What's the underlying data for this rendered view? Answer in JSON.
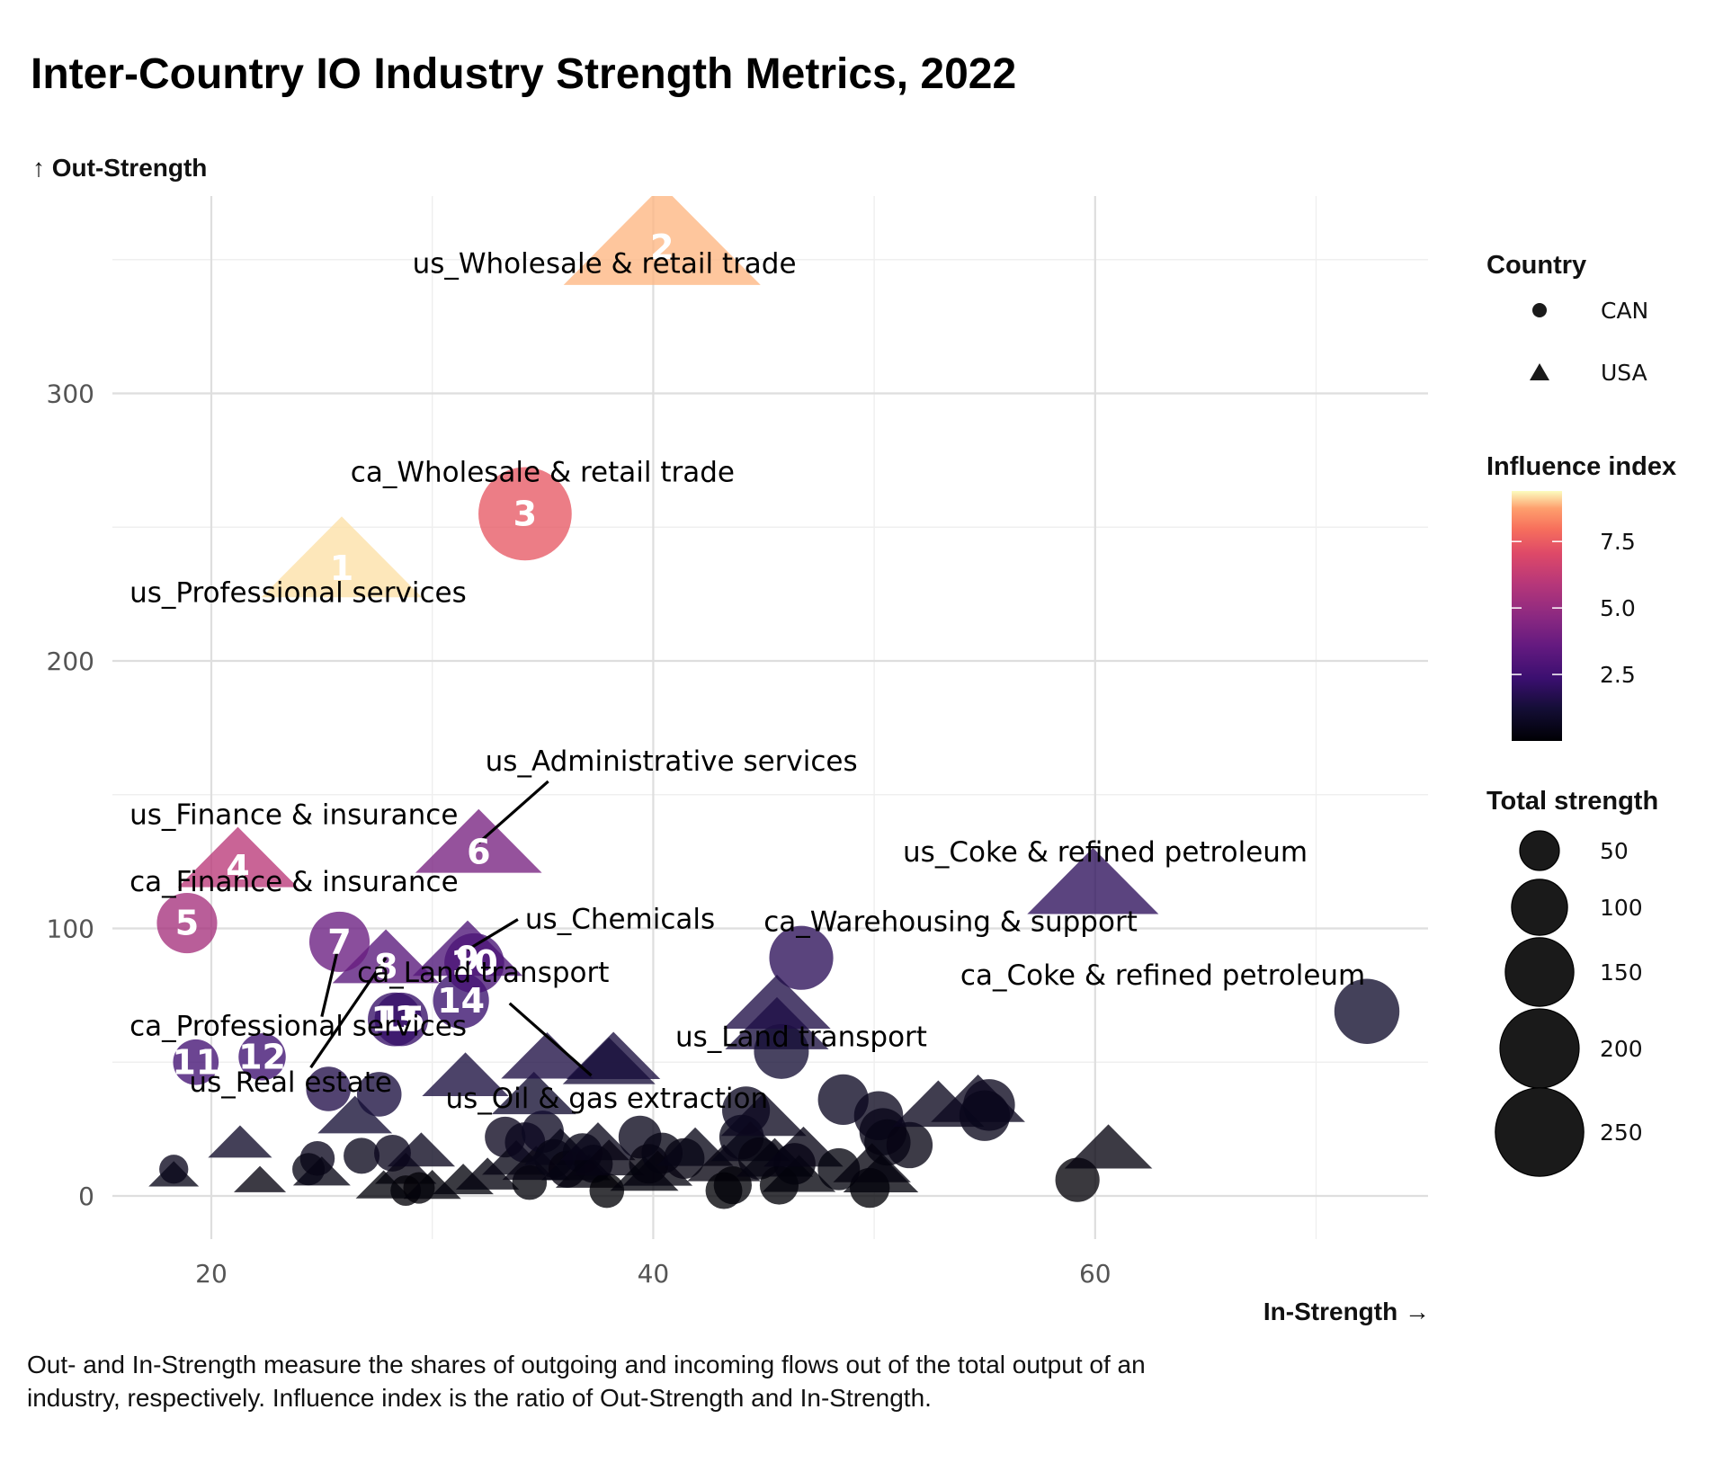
{
  "chart_data": {
    "type": "scatter",
    "title": "Inter-Country IO Industry Strength Metrics, 2022",
    "xlabel": "In-Strength →",
    "ylabel": "↑ Out-Strength",
    "xlim": [
      15.5,
      74.5
    ],
    "ylim": [
      -16,
      375
    ],
    "x_ticks": [
      20,
      40,
      60
    ],
    "y_ticks": [
      0,
      100,
      200,
      300
    ],
    "x_tick_labels": [
      "20",
      "40",
      "60"
    ],
    "y_tick_labels": [
      "0",
      "100",
      "200",
      "300"
    ],
    "grid": true,
    "caption_lines": [
      "Out- and In-Strength measure the shares of outgoing and incoming flows out of the total output of an",
      "industry, respectively. Influence index is the ratio of Out-Strength and In-Strength."
    ],
    "legend": {
      "placement": "right",
      "country": {
        "title": "Country",
        "entries": [
          {
            "label": "CAN",
            "shape": "circle"
          },
          {
            "label": "USA",
            "shape": "triangle"
          }
        ]
      },
      "color": {
        "title": "Influence index",
        "palette": "magma",
        "range": [
          0,
          9.4
        ],
        "ticks": [
          2.5,
          5.0,
          7.5
        ],
        "tick_labels": [
          "2.5",
          "5.0",
          "7.5"
        ]
      },
      "size": {
        "title": "Total strength",
        "values": [
          50,
          100,
          150,
          200,
          250
        ],
        "labels": [
          "50",
          "100",
          "150",
          "200",
          "250"
        ]
      }
    },
    "labeled_points": [
      {
        "rank": "1",
        "name": "us_Professional services",
        "country": "USA",
        "x": 25.9,
        "y": 238,
        "influence": 9.2,
        "total": 264,
        "label": "us_Professional services",
        "label_pos": [
          16.3,
          222
        ],
        "segment": false
      },
      {
        "rank": "2",
        "name": "us_Wholesale & retail trade",
        "country": "USA",
        "x": 40.4,
        "y": 358,
        "influence": 8.9,
        "total": 398,
        "label": "us_Wholesale & retail trade",
        "label_pos": [
          29.1,
          345
        ],
        "segment": false
      },
      {
        "rank": "3",
        "name": "ca_Wholesale & retail trade",
        "country": "CAN",
        "x": 34.2,
        "y": 255,
        "influence": 7.4,
        "total": 289,
        "label": "ca_Wholesale & retail trade",
        "label_pos": [
          26.3,
          267
        ],
        "segment": false
      },
      {
        "rank": "4",
        "name": "us_Finance & insurance",
        "country": "USA",
        "x": 21.2,
        "y": 126,
        "influence": 6.0,
        "total": 147,
        "label": "us_Finance & insurance",
        "label_pos": [
          16.3,
          139
        ],
        "segment": false
      },
      {
        "rank": "5",
        "name": "ca_Finance & insurance",
        "country": "CAN",
        "x": 18.9,
        "y": 102,
        "influence": 5.4,
        "total": 121,
        "label": "ca_Finance & insurance",
        "label_pos": [
          16.3,
          114
        ],
        "segment": false
      },
      {
        "rank": "6",
        "name": "us_Administrative services",
        "country": "USA",
        "x": 32.1,
        "y": 132,
        "influence": 4.1,
        "total": 164,
        "label": "us_Administrative services",
        "label_pos": [
          32.4,
          159
        ],
        "segment": true
      },
      {
        "rank": "7",
        "name": "ca_Professional services",
        "country": "CAN",
        "x": 25.8,
        "y": 95,
        "influence": 3.7,
        "total": 121,
        "label": "ca_Professional services",
        "label_pos": [
          16.3,
          60
        ],
        "segment": true
      },
      {
        "rank": "8",
        "name": "us_Real estate",
        "country": "USA",
        "x": 27.9,
        "y": 89,
        "influence": 3.2,
        "total": 117,
        "label": "us_Real estate",
        "label_pos": [
          19.0,
          39
        ],
        "segment": true
      },
      {
        "rank": "9",
        "name": "us_Chemicals",
        "country": "USA",
        "x": 31.6,
        "y": 92,
        "influence": 2.9,
        "total": 124,
        "label": "us_Chemicals",
        "label_pos": [
          34.2,
          100
        ],
        "segment": true
      },
      {
        "rank": "10",
        "name": "ca_Land transport",
        "country": "CAN",
        "x": 31.9,
        "y": 87,
        "influence": 2.7,
        "total": 119,
        "label": "ca_Land transport",
        "label_pos": [
          26.6,
          80
        ],
        "segment": false
      },
      {
        "rank": "11",
        "name": "ca_Point 11",
        "country": "CAN",
        "x": 19.3,
        "y": 50,
        "influence": 2.6,
        "total": 69,
        "label": null
      },
      {
        "rank": "12",
        "name": "ca_Point 12",
        "country": "CAN",
        "x": 22.3,
        "y": 52,
        "influence": 2.4,
        "total": 74,
        "label": null
      },
      {
        "rank": "13",
        "name": "ca_Point 13",
        "country": "CAN",
        "x": 28.3,
        "y": 66,
        "influence": 2.2,
        "total": 96,
        "label": null
      },
      {
        "rank": "14",
        "name": "ca_Point 14",
        "country": "CAN",
        "x": 31.3,
        "y": 73,
        "influence": 2.3,
        "total": 104,
        "label": null
      },
      {
        "rank": "15",
        "name": "ca_Point 15",
        "country": "CAN",
        "x": 28.6,
        "y": 66,
        "influence": 2.2,
        "total": 95,
        "label": null
      }
    ],
    "other_labeled_points": [
      {
        "name": "us_Oil & gas extraction",
        "country": "USA",
        "x": 38.0,
        "y": 50,
        "influence": 1.3,
        "total": 88,
        "label": "us_Oil & gas extraction",
        "label_pos": [
          30.6,
          33
        ],
        "segment": true
      },
      {
        "name": "us_Coke & refined petroleum",
        "country": "USA",
        "x": 59.9,
        "y": 117,
        "influence": 1.95,
        "total": 177,
        "label": "us_Coke & refined petroleum",
        "label_pos": [
          51.3,
          125
        ],
        "segment": false
      },
      {
        "name": "ca_Warehousing & support",
        "country": "CAN",
        "x": 46.7,
        "y": 89,
        "influence": 1.9,
        "total": 136,
        "label": "ca_Warehousing & support",
        "label_pos": [
          45.0,
          99
        ],
        "segment": false
      },
      {
        "name": "ca_Coke & refined petroleum",
        "country": "CAN",
        "x": 72.3,
        "y": 69,
        "influence": 0.95,
        "total": 141,
        "label": "ca_Coke & refined petroleum",
        "label_pos": [
          53.9,
          79
        ],
        "segment": false
      },
      {
        "name": "us_Land transport",
        "country": "USA",
        "x": 45.6,
        "y": 72,
        "influence": 1.55,
        "total": 118,
        "label": "us_Land transport",
        "label_pos": [
          41.0,
          56
        ],
        "segment": false
      }
    ],
    "other_points": [
      {
        "c": "CAN",
        "x": 18.3,
        "y": 10,
        "i": 0.6,
        "t": 28
      },
      {
        "c": "USA",
        "x": 18.3,
        "y": 8,
        "i": 0.5,
        "t": 26
      },
      {
        "c": "USA",
        "x": 21.3,
        "y": 20,
        "i": 0.9,
        "t": 42
      },
      {
        "c": "USA",
        "x": 22.2,
        "y": 6,
        "i": 0.3,
        "t": 28
      },
      {
        "c": "CAN",
        "x": 24.8,
        "y": 14,
        "i": 0.6,
        "t": 40
      },
      {
        "c": "CAN",
        "x": 24.4,
        "y": 10,
        "i": 0.4,
        "t": 35
      },
      {
        "c": "USA",
        "x": 25.0,
        "y": 9,
        "i": 0.4,
        "t": 34
      },
      {
        "c": "CAN",
        "x": 25.3,
        "y": 40,
        "i": 1.6,
        "t": 66
      },
      {
        "c": "CAN",
        "x": 27.6,
        "y": 38,
        "i": 1.4,
        "t": 66
      },
      {
        "c": "USA",
        "x": 26.5,
        "y": 30,
        "i": 1.2,
        "t": 57
      },
      {
        "c": "CAN",
        "x": 26.8,
        "y": 15,
        "i": 0.55,
        "t": 43
      },
      {
        "c": "CAN",
        "x": 28.2,
        "y": 16,
        "i": 0.6,
        "t": 45
      },
      {
        "c": "USA",
        "x": 28.8,
        "y": 10,
        "i": 0.35,
        "t": 39
      },
      {
        "c": "CAN",
        "x": 28.8,
        "y": 2,
        "i": 0.1,
        "t": 31
      },
      {
        "c": "USA",
        "x": 29.5,
        "y": 17,
        "i": 0.6,
        "t": 47
      },
      {
        "c": "USA",
        "x": 27.8,
        "y": 4,
        "i": 0.15,
        "t": 32
      },
      {
        "c": "CAN",
        "x": 29.4,
        "y": 3,
        "i": 0.1,
        "t": 33
      },
      {
        "c": "USA",
        "x": 30.0,
        "y": 4,
        "i": 0.15,
        "t": 34
      },
      {
        "c": "USA",
        "x": 31.5,
        "y": 45,
        "i": 1.4,
        "t": 77
      },
      {
        "c": "USA",
        "x": 31.4,
        "y": 6,
        "i": 0.2,
        "t": 38
      },
      {
        "c": "USA",
        "x": 32.5,
        "y": 8,
        "i": 0.25,
        "t": 41
      },
      {
        "c": "CAN",
        "x": 33.3,
        "y": 22,
        "i": 0.65,
        "t": 55
      },
      {
        "c": "USA",
        "x": 33.8,
        "y": 14,
        "i": 0.4,
        "t": 48
      },
      {
        "c": "CAN",
        "x": 34.4,
        "y": 5,
        "i": 0.15,
        "t": 40
      },
      {
        "c": "CAN",
        "x": 34.2,
        "y": 20,
        "i": 0.6,
        "t": 54
      },
      {
        "c": "USA",
        "x": 34.7,
        "y": 12,
        "i": 0.35,
        "t": 47
      },
      {
        "c": "CAN",
        "x": 35.0,
        "y": 24,
        "i": 0.7,
        "t": 59
      },
      {
        "c": "USA",
        "x": 34.6,
        "y": 38,
        "i": 1.1,
        "t": 73
      },
      {
        "c": "USA",
        "x": 35.2,
        "y": 52,
        "i": 1.5,
        "t": 87
      },
      {
        "c": "CAN",
        "x": 35.5,
        "y": 14,
        "i": 0.4,
        "t": 50
      },
      {
        "c": "USA",
        "x": 35.8,
        "y": 18,
        "i": 0.5,
        "t": 54
      },
      {
        "c": "CAN",
        "x": 36.1,
        "y": 10,
        "i": 0.28,
        "t": 46
      },
      {
        "c": "USA",
        "x": 36.5,
        "y": 12,
        "i": 0.33,
        "t": 49
      },
      {
        "c": "CAN",
        "x": 36.8,
        "y": 16,
        "i": 0.43,
        "t": 53
      },
      {
        "c": "USA",
        "x": 37.1,
        "y": 9,
        "i": 0.24,
        "t": 46
      },
      {
        "c": "CAN",
        "x": 37.3,
        "y": 12,
        "i": 0.32,
        "t": 49
      },
      {
        "c": "USA",
        "x": 37.5,
        "y": 20,
        "i": 0.53,
        "t": 58
      },
      {
        "c": "CAN",
        "x": 37.9,
        "y": 2,
        "i": 0.05,
        "t": 40
      },
      {
        "c": "USA",
        "x": 38.2,
        "y": 52,
        "i": 1.4,
        "t": 90
      },
      {
        "c": "USA",
        "x": 38.0,
        "y": 14,
        "i": 0.37,
        "t": 52
      },
      {
        "c": "CAN",
        "x": 39.4,
        "y": 22,
        "i": 0.56,
        "t": 61
      },
      {
        "c": "CAN",
        "x": 39.8,
        "y": 12,
        "i": 0.3,
        "t": 52
      },
      {
        "c": "USA",
        "x": 39.6,
        "y": 8,
        "i": 0.2,
        "t": 48
      },
      {
        "c": "CAN",
        "x": 40.4,
        "y": 16,
        "i": 0.4,
        "t": 56
      },
      {
        "c": "USA",
        "x": 40.2,
        "y": 10,
        "i": 0.25,
        "t": 50
      },
      {
        "c": "CAN",
        "x": 41.4,
        "y": 14,
        "i": 0.34,
        "t": 55
      },
      {
        "c": "USA",
        "x": 41.9,
        "y": 18,
        "i": 0.43,
        "t": 60
      },
      {
        "c": "USA",
        "x": 43.2,
        "y": 12,
        "i": 0.28,
        "t": 55
      },
      {
        "c": "CAN",
        "x": 43.2,
        "y": 2,
        "i": 0.05,
        "t": 45
      },
      {
        "c": "CAN",
        "x": 43.6,
        "y": 4,
        "i": 0.09,
        "t": 48
      },
      {
        "c": "CAN",
        "x": 44.0,
        "y": 22,
        "i": 0.5,
        "t": 66
      },
      {
        "c": "CAN",
        "x": 44.2,
        "y": 32,
        "i": 0.72,
        "t": 76
      },
      {
        "c": "USA",
        "x": 44.4,
        "y": 20,
        "i": 0.45,
        "t": 64
      },
      {
        "c": "CAN",
        "x": 44.8,
        "y": 14,
        "i": 0.31,
        "t": 59
      },
      {
        "c": "USA",
        "x": 45.0,
        "y": 30,
        "i": 0.67,
        "t": 75
      },
      {
        "c": "USA",
        "x": 45.6,
        "y": 64,
        "i": 1.4,
        "t": 110
      },
      {
        "c": "CAN",
        "x": 45.8,
        "y": 54,
        "i": 1.2,
        "t": 100
      },
      {
        "c": "CAN",
        "x": 45.7,
        "y": 4,
        "i": 0.09,
        "t": 50
      },
      {
        "c": "USA",
        "x": 45.5,
        "y": 14,
        "i": 0.31,
        "t": 60
      },
      {
        "c": "CAN",
        "x": 46.4,
        "y": 12,
        "i": 0.26,
        "t": 58
      },
      {
        "c": "USA",
        "x": 46.6,
        "y": 8,
        "i": 0.17,
        "t": 55
      },
      {
        "c": "USA",
        "x": 46.8,
        "y": 18,
        "i": 0.38,
        "t": 65
      },
      {
        "c": "CAN",
        "x": 48.6,
        "y": 36,
        "i": 0.74,
        "t": 85
      },
      {
        "c": "CAN",
        "x": 48.4,
        "y": 10,
        "i": 0.21,
        "t": 59
      },
      {
        "c": "CAN",
        "x": 50.2,
        "y": 30,
        "i": 0.6,
        "t": 80
      },
      {
        "c": "CAN",
        "x": 50.4,
        "y": 24,
        "i": 0.48,
        "t": 74
      },
      {
        "c": "CAN",
        "x": 50.6,
        "y": 20,
        "i": 0.4,
        "t": 71
      },
      {
        "c": "CAN",
        "x": 51.6,
        "y": 19,
        "i": 0.37,
        "t": 71
      },
      {
        "c": "CAN",
        "x": 49.8,
        "y": 3,
        "i": 0.06,
        "t": 53
      },
      {
        "c": "USA",
        "x": 50.3,
        "y": 8,
        "i": 0.16,
        "t": 58
      },
      {
        "c": "USA",
        "x": 49.9,
        "y": 12,
        "i": 0.24,
        "t": 62
      },
      {
        "c": "USA",
        "x": 52.9,
        "y": 34,
        "i": 0.64,
        "t": 87
      },
      {
        "c": "CAN",
        "x": 55.2,
        "y": 34,
        "i": 0.62,
        "t": 89
      },
      {
        "c": "USA",
        "x": 54.7,
        "y": 36,
        "i": 0.66,
        "t": 91
      },
      {
        "c": "CAN",
        "x": 55.0,
        "y": 30,
        "i": 0.55,
        "t": 85
      },
      {
        "c": "CAN",
        "x": 59.2,
        "y": 6,
        "i": 0.1,
        "t": 65
      },
      {
        "c": "USA",
        "x": 60.6,
        "y": 18,
        "i": 0.3,
        "t": 79
      }
    ]
  },
  "page": {
    "title": "Inter-Country IO Industry Strength Metrics, 2022",
    "y_axis_title": "↑ Out-Strength",
    "x_axis_title": "In-Strength →"
  }
}
